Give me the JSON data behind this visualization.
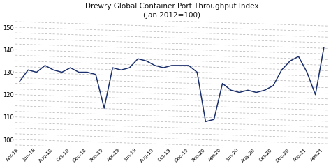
{
  "title_line1": "Drewry Global Container Port Throughput Index",
  "title_line2": "(Jan 2012=100)",
  "title_fontsize": 7.5,
  "background_color": "#ffffff",
  "line_color": "#1a2f6b",
  "grid_color": "#b0b0b0",
  "ylim": [
    97,
    153
  ],
  "yticks": [
    100,
    110,
    120,
    130,
    140,
    150
  ],
  "x_labels": [
    "Apr-18",
    "Jun-18",
    "Aug-18",
    "Oct-18",
    "Dec-18",
    "Feb-19",
    "Apr-19",
    "Jun-19",
    "Aug-19",
    "Oct-19",
    "Dec-19",
    "Feb-20",
    "Apr-20",
    "Jun-20",
    "Aug-20",
    "Oct-20",
    "Dec-20",
    "Feb-21",
    "Apr-21"
  ],
  "monthly_values": [
    126,
    131,
    130,
    133,
    131,
    130,
    132,
    130,
    130,
    129,
    114,
    132,
    131,
    132,
    136,
    135,
    133,
    132,
    133,
    133,
    133,
    130,
    108,
    109,
    125,
    122,
    121,
    122,
    121,
    122,
    124,
    131,
    135,
    137,
    130,
    120,
    141
  ],
  "n_months": 37,
  "diagonal_offsets": [
    -6,
    -4.5,
    -3,
    -1.5,
    0,
    1.5,
    3,
    4.5,
    6,
    7.5,
    9,
    10.5,
    12,
    13.5,
    15,
    16.5,
    18,
    19.5,
    21,
    22.5,
    24,
    25.5,
    27
  ],
  "base_levels": [
    97,
    99,
    101,
    103,
    105,
    107,
    109,
    111,
    113,
    115,
    117,
    119,
    121,
    123,
    125,
    127,
    129,
    131,
    133,
    135,
    137,
    139,
    141,
    143,
    145,
    147,
    149,
    151,
    153
  ]
}
